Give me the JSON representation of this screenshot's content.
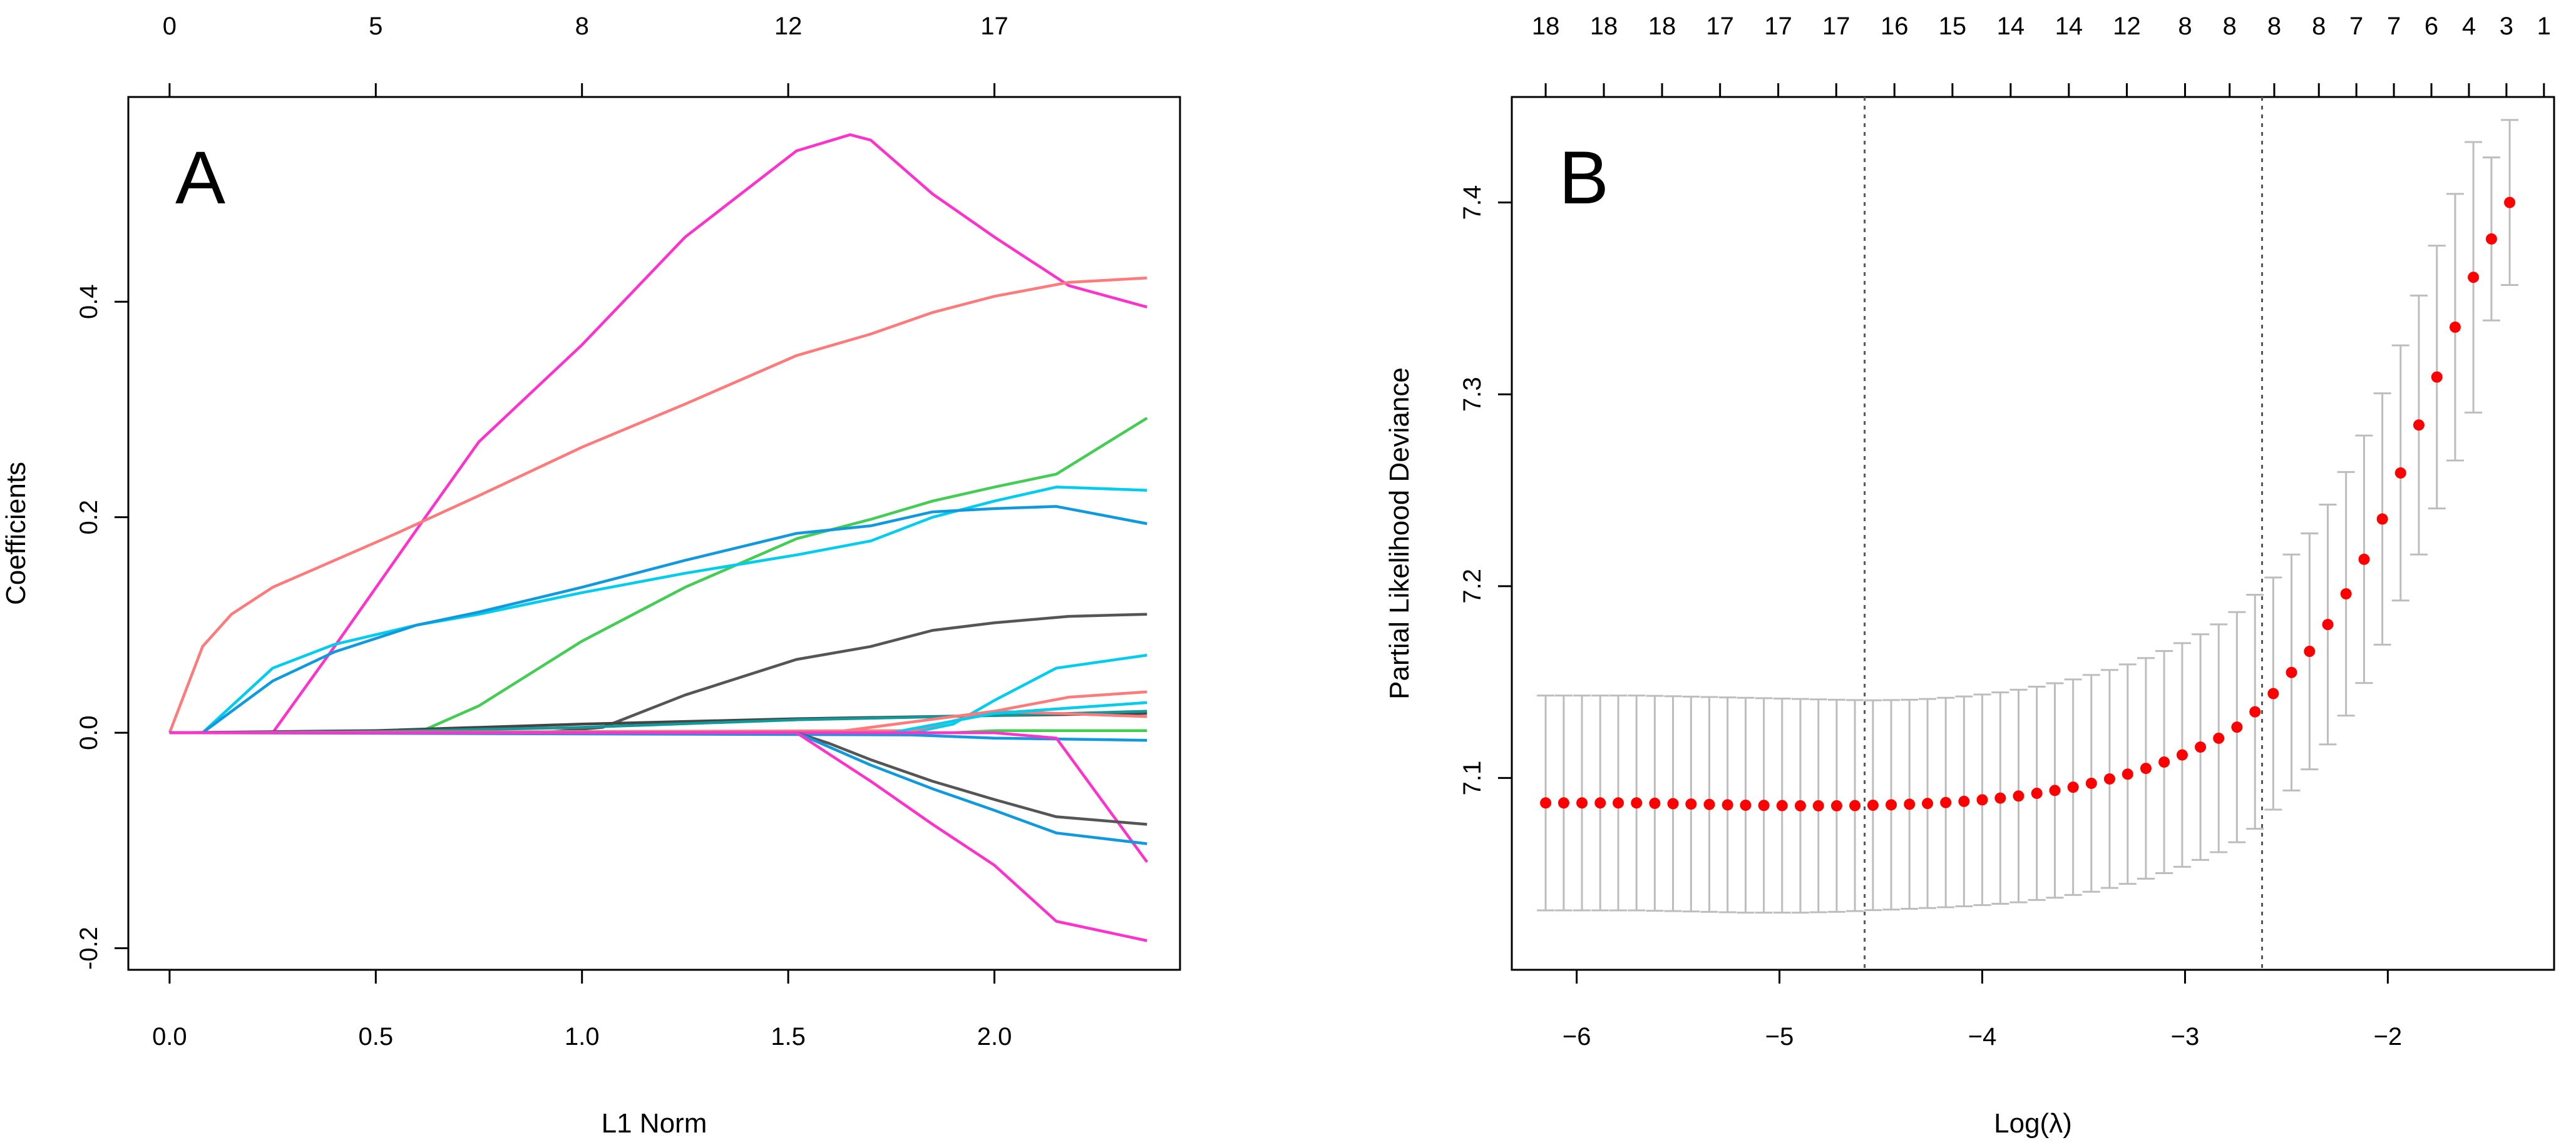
{
  "chart_data": [
    {
      "type": "line",
      "panel_label": "A",
      "xlabel": "L1 Norm",
      "ylabel": "Coefficients",
      "xlim": [
        -0.1,
        2.45
      ],
      "ylim": [
        -0.22,
        0.59
      ],
      "x_ticks": [
        "0.0",
        "0.5",
        "1.0",
        "1.5",
        "2.0"
      ],
      "y_ticks": [
        "-0.2",
        "0.0",
        "0.2",
        "0.4"
      ],
      "top_axis": [
        {
          "x": 0.0,
          "label": "0"
        },
        {
          "x": 0.5,
          "label": "5"
        },
        {
          "x": 1.0,
          "label": "8"
        },
        {
          "x": 1.5,
          "label": "12"
        },
        {
          "x": 2.0,
          "label": "17"
        }
      ],
      "series": [
        {
          "name": "path-1",
          "color": "#ff33cc",
          "x": [
            0,
            0.25,
            0.4,
            0.62,
            0.75,
            1.0,
            1.25,
            1.52,
            1.65,
            1.7,
            1.85,
            2.0,
            2.18,
            2.37
          ],
          "values": [
            0,
            0,
            0.08,
            0.2,
            0.27,
            0.36,
            0.46,
            0.54,
            0.555,
            0.55,
            0.5,
            0.46,
            0.415,
            0.395
          ]
        },
        {
          "name": "path-2",
          "color": "#ff7a7a",
          "x": [
            0,
            0.08,
            0.15,
            0.25,
            0.4,
            0.55,
            0.75,
            1.0,
            1.25,
            1.52,
            1.7,
            1.85,
            2.0,
            2.18,
            2.37
          ],
          "values": [
            0,
            0.08,
            0.11,
            0.135,
            0.16,
            0.185,
            0.22,
            0.265,
            0.305,
            0.35,
            0.37,
            0.39,
            0.405,
            0.418,
            0.422
          ]
        },
        {
          "name": "path-3",
          "color": "#44cc55",
          "x": [
            0,
            0.55,
            0.62,
            0.75,
            1.0,
            1.25,
            1.52,
            1.7,
            1.85,
            2.0,
            2.15,
            2.37
          ],
          "values": [
            0,
            0,
            0.003,
            0.025,
            0.085,
            0.135,
            0.18,
            0.198,
            0.215,
            0.228,
            0.24,
            0.292
          ]
        },
        {
          "name": "path-4",
          "color": "#00ccee",
          "x": [
            0,
            0.08,
            0.25,
            0.4,
            0.6,
            0.75,
            1.0,
            1.25,
            1.52,
            1.7,
            1.85,
            2.0,
            2.15,
            2.37
          ],
          "values": [
            0,
            0,
            0.06,
            0.082,
            0.1,
            0.11,
            0.13,
            0.148,
            0.165,
            0.178,
            0.2,
            0.215,
            0.228,
            0.225
          ]
        },
        {
          "name": "path-5",
          "color": "#1199dd",
          "x": [
            0,
            0.08,
            0.25,
            0.4,
            0.6,
            0.75,
            1.0,
            1.25,
            1.52,
            1.7,
            1.85,
            2.0,
            2.15,
            2.37
          ],
          "values": [
            0,
            0,
            0.048,
            0.075,
            0.1,
            0.112,
            0.135,
            0.16,
            0.185,
            0.192,
            0.205,
            0.208,
            0.21,
            0.194
          ]
        },
        {
          "name": "path-6",
          "color": "#555555",
          "x": [
            0,
            0.9,
            1.05,
            1.25,
            1.52,
            1.7,
            1.85,
            2.0,
            2.18,
            2.37
          ],
          "values": [
            0,
            0,
            0.005,
            0.035,
            0.068,
            0.08,
            0.095,
            0.102,
            0.108,
            0.11
          ]
        },
        {
          "name": "path-7",
          "color": "#444444",
          "x": [
            0,
            0.5,
            1.0,
            1.52,
            2.0,
            2.37
          ],
          "values": [
            0,
            0.002,
            0.008,
            0.013,
            0.016,
            0.018
          ]
        },
        {
          "name": "path-8",
          "color": "#119999",
          "x": [
            0,
            0.5,
            1.0,
            1.52,
            2.0,
            2.37
          ],
          "values": [
            0,
            0.001,
            0.005,
            0.012,
            0.016,
            0.02
          ]
        },
        {
          "name": "path-9",
          "color": "#00ccee",
          "x": [
            0,
            1.8,
            1.9,
            2.0,
            2.15,
            2.37
          ],
          "values": [
            0,
            0,
            0.008,
            0.03,
            0.06,
            0.072
          ]
        },
        {
          "name": "path-10",
          "color": "#ff7a7a",
          "x": [
            0,
            1.8,
            2.0,
            2.18,
            2.37
          ],
          "values": [
            0,
            0.002,
            0.02,
            0.033,
            0.038
          ]
        },
        {
          "name": "path-11",
          "color": "#ff7a7a",
          "x": [
            0,
            1.6,
            1.8,
            2.0,
            2.37
          ],
          "values": [
            0,
            0,
            0.01,
            0.02,
            0.015
          ]
        },
        {
          "name": "path-12",
          "color": "#00ccee",
          "x": [
            0,
            1.75,
            2.0,
            2.37
          ],
          "values": [
            0,
            0,
            0.018,
            0.028
          ]
        },
        {
          "name": "path-13",
          "color": "#44cc55",
          "x": [
            0,
            1.9,
            2.0,
            2.37
          ],
          "values": [
            0,
            0,
            0.002,
            0.002
          ]
        },
        {
          "name": "path-14",
          "color": "#1199dd",
          "x": [
            0,
            1.8,
            2.0,
            2.37
          ],
          "values": [
            0,
            -0.002,
            -0.005,
            -0.007
          ]
        },
        {
          "name": "path-15",
          "color": "#ff33cc",
          "x": [
            0,
            2.0,
            2.15,
            2.37
          ],
          "values": [
            0,
            0,
            -0.005,
            -0.12
          ]
        },
        {
          "name": "path-16",
          "color": "#555555",
          "x": [
            0,
            1.52,
            1.6,
            1.7,
            1.85,
            2.0,
            2.15,
            2.37
          ],
          "values": [
            0,
            0,
            -0.01,
            -0.025,
            -0.045,
            -0.062,
            -0.078,
            -0.085
          ]
        },
        {
          "name": "path-17",
          "color": "#1199dd",
          "x": [
            0,
            1.52,
            1.7,
            1.85,
            2.0,
            2.15,
            2.37
          ],
          "values": [
            0,
            0,
            -0.03,
            -0.052,
            -0.072,
            -0.093,
            -0.103
          ]
        },
        {
          "name": "path-18",
          "color": "#ff33cc",
          "x": [
            0,
            1.52,
            1.6,
            1.7,
            1.85,
            2.0,
            2.15,
            2.37
          ],
          "values": [
            0,
            0,
            -0.02,
            -0.045,
            -0.085,
            -0.123,
            -0.175,
            -0.193
          ]
        }
      ]
    },
    {
      "type": "scatter",
      "panel_label": "B",
      "xlabel": "Log(λ)",
      "ylabel": "Partial Likelihood Deviance",
      "xlim": [
        -6.32,
        -1.18
      ],
      "ylim": [
        7.0,
        7.455
      ],
      "x_ticks": [
        "−6",
        "−5",
        "−4",
        "−3",
        "−2"
      ],
      "y_ticks": [
        "7.1",
        "7.2",
        "7.3",
        "7.4"
      ],
      "top_axis": [
        {
          "x": -6.153,
          "label": "18"
        },
        {
          "x": -5.866,
          "label": "18"
        },
        {
          "x": -5.579,
          "label": "18"
        },
        {
          "x": -5.293,
          "label": "17"
        },
        {
          "x": -5.006,
          "label": "17"
        },
        {
          "x": -4.72,
          "label": "17"
        },
        {
          "x": -4.433,
          "label": "16"
        },
        {
          "x": -4.147,
          "label": "15"
        },
        {
          "x": -3.86,
          "label": "14"
        },
        {
          "x": -3.573,
          "label": "14"
        },
        {
          "x": -3.287,
          "label": "12"
        },
        {
          "x": -3.0,
          "label": "8"
        },
        {
          "x": -2.78,
          "label": "8"
        },
        {
          "x": -2.56,
          "label": "8"
        },
        {
          "x": -2.34,
          "label": "8"
        },
        {
          "x": -2.155,
          "label": "7"
        },
        {
          "x": -1.97,
          "label": "7"
        },
        {
          "x": -1.785,
          "label": "6"
        },
        {
          "x": -1.6,
          "label": "4"
        },
        {
          "x": -1.415,
          "label": "3"
        },
        {
          "x": -1.23,
          "label": "1"
        }
      ],
      "vlines": [
        -4.58,
        -2.62
      ],
      "x": [
        -6.153,
        -6.064,
        -5.974,
        -5.884,
        -5.795,
        -5.705,
        -5.615,
        -5.525,
        -5.436,
        -5.346,
        -5.256,
        -5.167,
        -5.077,
        -4.987,
        -4.897,
        -4.808,
        -4.718,
        -4.628,
        -4.539,
        -4.449,
        -4.359,
        -4.27,
        -4.18,
        -4.09,
        -4.0,
        -3.911,
        -3.821,
        -3.731,
        -3.642,
        -3.552,
        -3.462,
        -3.372,
        -3.283,
        -3.193,
        -3.103,
        -3.014,
        -2.924,
        -2.834,
        -2.744,
        -2.655,
        -2.565,
        -2.475,
        -2.386,
        -2.296,
        -2.206,
        -2.117,
        -2.027,
        -1.937,
        -1.847,
        -1.758,
        -1.668,
        -1.578,
        -1.489,
        -1.399
      ],
      "values": [
        7.087,
        7.087,
        7.087,
        7.087,
        7.087,
        7.087,
        7.0868,
        7.0866,
        7.0864,
        7.0862,
        7.086,
        7.0858,
        7.0857,
        7.0856,
        7.0855,
        7.0855,
        7.0855,
        7.0856,
        7.0858,
        7.086,
        7.0863,
        7.0867,
        7.0872,
        7.0878,
        7.0886,
        7.0895,
        7.0906,
        7.092,
        7.0935,
        7.0952,
        7.0972,
        7.0995,
        7.102,
        7.105,
        7.1083,
        7.112,
        7.1161,
        7.1207,
        7.1265,
        7.1345,
        7.144,
        7.155,
        7.166,
        7.18,
        7.196,
        7.214,
        7.235,
        7.259,
        7.284,
        7.309,
        7.335,
        7.361,
        7.381,
        7.4
      ],
      "upper": [
        7.143,
        7.143,
        7.143,
        7.143,
        7.143,
        7.143,
        7.1428,
        7.1426,
        7.1424,
        7.1422,
        7.142,
        7.1418,
        7.1416,
        7.1414,
        7.1412,
        7.141,
        7.1408,
        7.1406,
        7.1405,
        7.1406,
        7.1408,
        7.1412,
        7.1418,
        7.1425,
        7.1435,
        7.1446,
        7.146,
        7.1476,
        7.1494,
        7.1514,
        7.1537,
        7.1563,
        7.1592,
        7.1625,
        7.1662,
        7.1703,
        7.1749,
        7.1801,
        7.1865,
        7.1955,
        7.2045,
        7.2165,
        7.2275,
        7.2425,
        7.2595,
        7.2785,
        7.3005,
        7.3255,
        7.3515,
        7.3775,
        7.4045,
        7.4315,
        7.4235,
        7.443
      ],
      "lower": [
        7.031,
        7.031,
        7.031,
        7.031,
        7.031,
        7.031,
        7.0308,
        7.0306,
        7.0304,
        7.0302,
        7.03,
        7.0298,
        7.0298,
        7.0298,
        7.0298,
        7.03,
        7.0302,
        7.0306,
        7.0311,
        7.0314,
        7.0318,
        7.0322,
        7.0326,
        7.0331,
        7.0337,
        7.0344,
        7.0352,
        7.0364,
        7.0376,
        7.039,
        7.0407,
        7.0427,
        7.0448,
        7.0475,
        7.0504,
        7.0537,
        7.0573,
        7.0613,
        7.0665,
        7.0735,
        7.0835,
        7.0935,
        7.1045,
        7.1175,
        7.1325,
        7.1495,
        7.1695,
        7.1925,
        7.2165,
        7.2405,
        7.2655,
        7.2905,
        7.3385,
        7.357
      ]
    }
  ]
}
